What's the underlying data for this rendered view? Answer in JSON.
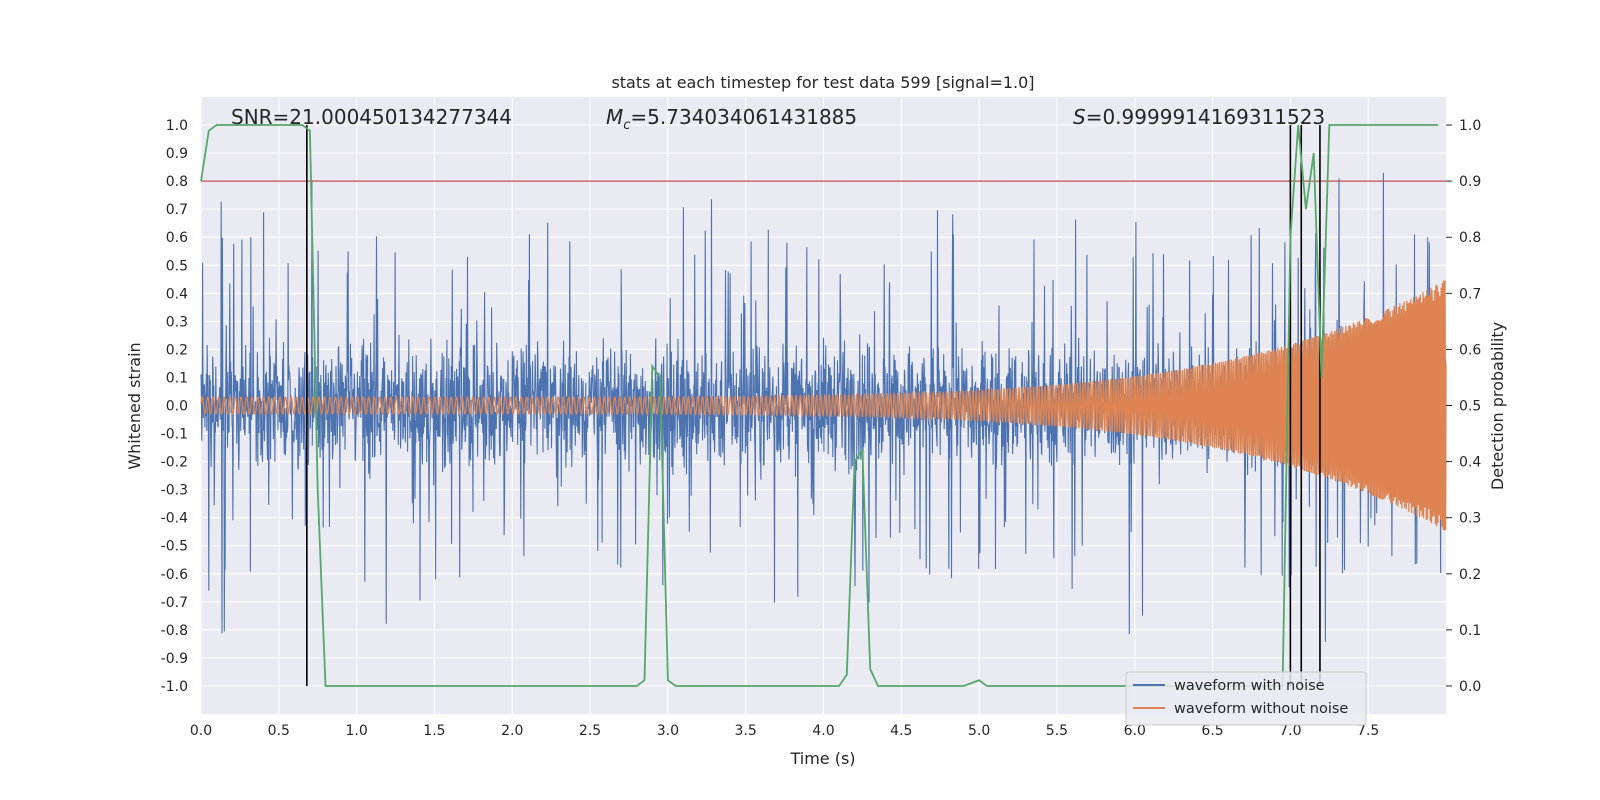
{
  "chart_data": {
    "type": "line",
    "title": "stats at each timestep for test data 599 [signal=1.0]",
    "xlabel": "Time (s)",
    "ylabel": "Whitened strain",
    "y2label": "Detection probability",
    "xlim": [
      0.0,
      8.0
    ],
    "ylim": [
      -1.1,
      1.1
    ],
    "y2lim": [
      -0.05,
      1.05
    ],
    "xticks": [
      0.0,
      0.5,
      1.0,
      1.5,
      2.0,
      2.5,
      3.0,
      3.5,
      4.0,
      4.5,
      5.0,
      5.5,
      6.0,
      6.5,
      7.0,
      7.5
    ],
    "xtick_labels": [
      "0.0",
      "0.5",
      "1.0",
      "1.5",
      "2.0",
      "2.5",
      "3.0",
      "3.5",
      "4.0",
      "4.5",
      "5.0",
      "5.5",
      "6.0",
      "6.5",
      "7.0",
      "7.5"
    ],
    "yticks": [
      1.0,
      0.9,
      0.8,
      0.7,
      0.6,
      0.5,
      0.4,
      0.3,
      0.2,
      0.1,
      0.0,
      -0.1,
      -0.2,
      -0.3,
      -0.4,
      -0.5,
      -0.6,
      -0.7,
      -0.8,
      -0.9,
      -1.0
    ],
    "ytick_labels": [
      "1.0",
      "0.9",
      "0.8",
      "0.7",
      "0.6",
      "0.5",
      "0.4",
      "0.3",
      "0.2",
      "0.1",
      "0.0",
      "-0.1",
      "-0.2",
      "-0.3",
      "-0.4",
      "-0.5",
      "-0.6",
      "-0.7",
      "-0.8",
      "-0.9",
      "-1.0"
    ],
    "y2ticks": [
      1.0,
      0.9,
      0.8,
      0.7,
      0.6,
      0.5,
      0.4,
      0.3,
      0.2,
      0.1,
      0.0
    ],
    "y2tick_labels": [
      "1.0",
      "0.9",
      "0.8",
      "0.7",
      "0.6",
      "0.5",
      "0.4",
      "0.3",
      "0.2",
      "0.1",
      "0.0"
    ],
    "annotations": {
      "snr": "SNR=21.000450134277344",
      "mc": "=5.734034061431885",
      "mc_symbol": "M",
      "mc_sub": "c",
      "s": "=0.9999914169311523",
      "s_symbol": "S"
    },
    "threshold": {
      "value": 0.9,
      "axis": "right",
      "color": "#c44e52"
    },
    "detection_lines_x": [
      0.68,
      7.0,
      7.07,
      7.19
    ],
    "series": [
      {
        "name": "waveform with noise",
        "color": "#4c72b0",
        "kind": "noise",
        "duration": 8.0,
        "envelope": 0.19,
        "spike_max": 0.83,
        "spike_min": -0.93
      },
      {
        "name": "waveform without noise",
        "color": "#dd8452",
        "kind": "chirp",
        "duration": 8.0,
        "amp_start": 0.03,
        "amp_end": 0.45
      },
      {
        "name": "detection probability",
        "color": "#55a868",
        "axis": "right",
        "x": [
          0.0,
          0.05,
          0.1,
          0.65,
          0.7,
          0.75,
          0.8,
          2.8,
          2.85,
          2.9,
          2.95,
          3.0,
          3.05,
          4.1,
          4.15,
          4.2,
          4.25,
          4.3,
          4.35,
          4.9,
          5.0,
          5.05,
          6.95,
          7.0,
          7.05,
          7.1,
          7.15,
          7.2,
          7.25,
          7.95
        ],
        "y": [
          0.9,
          0.99,
          1.0,
          1.0,
          0.99,
          0.35,
          0.0,
          0.0,
          0.01,
          0.57,
          0.55,
          0.01,
          0.0,
          0.0,
          0.02,
          0.4,
          0.42,
          0.03,
          0.0,
          0.0,
          0.01,
          0.0,
          0.0,
          0.8,
          1.0,
          0.85,
          0.95,
          0.55,
          1.0,
          1.0
        ]
      }
    ],
    "legend": {
      "position": "lower-right",
      "entries": [
        {
          "label": "waveform with noise",
          "color": "#4c72b0"
        },
        {
          "label": "waveform without noise",
          "color": "#dd8452"
        }
      ]
    }
  }
}
